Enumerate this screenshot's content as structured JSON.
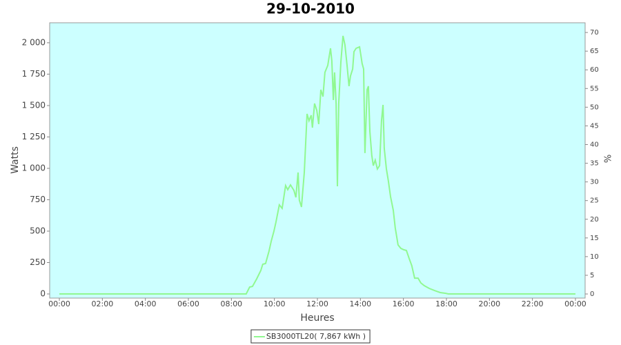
{
  "chart_data": {
    "type": "line",
    "title": "29-10-2010",
    "x_label": "Heures",
    "y_label": "Watts",
    "y2_label": "%",
    "background": "#ccffff",
    "xlim": [
      -0.45,
      24.45
    ],
    "xticks": [
      {
        "value": 0,
        "label": "00:00"
      },
      {
        "value": 2,
        "label": "02:00"
      },
      {
        "value": 4,
        "label": "04:00"
      },
      {
        "value": 6,
        "label": "06:00"
      },
      {
        "value": 8,
        "label": "08:00"
      },
      {
        "value": 10,
        "label": "10:00"
      },
      {
        "value": 12,
        "label": "12:00"
      },
      {
        "value": 14,
        "label": "14:00"
      },
      {
        "value": 16,
        "label": "16:00"
      },
      {
        "value": 18,
        "label": "18:00"
      },
      {
        "value": 20,
        "label": "20:00"
      },
      {
        "value": 22,
        "label": "22:00"
      },
      {
        "value": 24,
        "label": "00:00"
      }
    ],
    "ylim": [
      -33,
      2159
    ],
    "yticks": [
      0,
      250,
      500,
      750,
      {
        "value": 1000,
        "label": "1 000"
      },
      {
        "value": 1250,
        "label": "1 250"
      },
      {
        "value": 1500,
        "label": "1 500"
      },
      {
        "value": 1750,
        "label": "1 750"
      },
      {
        "value": 2000,
        "label": "2 000"
      }
    ],
    "y2lim": [
      -1.1,
      72.6
    ],
    "y2ticks": [
      0,
      5,
      10,
      15,
      20,
      25,
      30,
      35,
      40,
      45,
      50,
      55,
      60,
      65,
      70
    ],
    "x": [
      0,
      8.69,
      8.85,
      8.98,
      9.18,
      9.37,
      9.46,
      9.59,
      9.75,
      9.85,
      9.98,
      10.07,
      10.23,
      10.36,
      10.52,
      10.62,
      10.75,
      10.91,
      11.0,
      11.1,
      11.16,
      11.26,
      11.39,
      11.52,
      11.61,
      11.71,
      11.77,
      11.87,
      11.97,
      12.06,
      12.16,
      12.26,
      12.35,
      12.48,
      12.61,
      12.67,
      12.74,
      12.8,
      12.87,
      12.93,
      12.99,
      13.09,
      13.19,
      13.28,
      13.38,
      13.47,
      13.54,
      13.64,
      13.7,
      13.8,
      13.96,
      14.02,
      14.08,
      14.15,
      14.21,
      14.31,
      14.37,
      14.44,
      14.53,
      14.6,
      14.69,
      14.79,
      14.89,
      14.98,
      15.05,
      15.11,
      15.21,
      15.3,
      15.4,
      15.53,
      15.62,
      15.75,
      15.88,
      16.01,
      16.14,
      16.27,
      16.39,
      16.52,
      16.68,
      16.81,
      16.97,
      17.2,
      17.45,
      17.71,
      17.97,
      18.09,
      24
    ],
    "series": [
      {
        "name": "SB3000TL20( 7,867 kWh )",
        "color": "#90f890",
        "values": [
          0,
          0,
          55,
          60,
          121,
          187,
          236,
          242,
          341,
          418,
          500,
          571,
          709,
          681,
          863,
          830,
          868,
          824,
          769,
          967,
          747,
          692,
          967,
          1434,
          1379,
          1423,
          1324,
          1516,
          1462,
          1352,
          1626,
          1571,
          1764,
          1819,
          1956,
          1857,
          1544,
          1764,
          1516,
          857,
          1516,
          1846,
          2055,
          1984,
          1819,
          1654,
          1736,
          1791,
          1929,
          1956,
          1967,
          1901,
          1835,
          1791,
          1121,
          1626,
          1654,
          1297,
          1104,
          1022,
          1066,
          995,
          1022,
          1379,
          1505,
          1159,
          995,
          901,
          775,
          665,
          527,
          390,
          363,
          352,
          346,
          280,
          225,
          126,
          126,
          88,
          66,
          44,
          27,
          11,
          5,
          0,
          0
        ]
      }
    ]
  }
}
